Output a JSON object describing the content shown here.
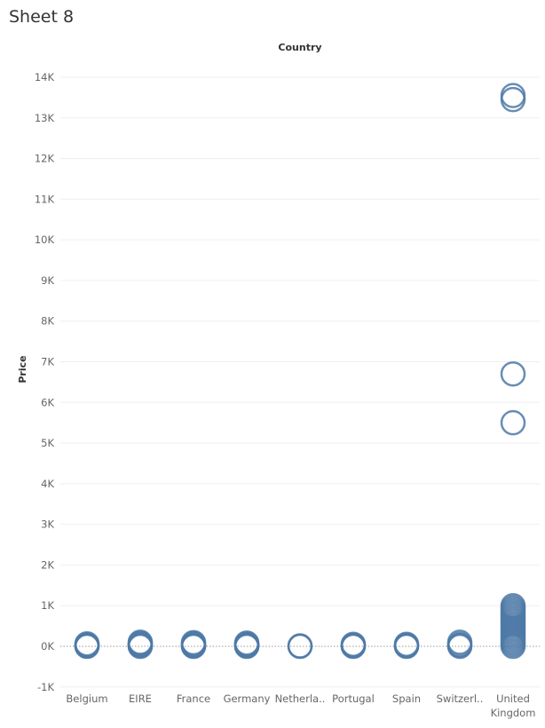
{
  "sheet": {
    "title": "Sheet 8"
  },
  "chart_data": {
    "type": "scatter",
    "title": "",
    "column_header": "Country",
    "ylabel": "Price",
    "ylim": [
      -1000,
      14500
    ],
    "yticks": [
      -1000,
      0,
      1000,
      2000,
      3000,
      4000,
      5000,
      6000,
      7000,
      8000,
      9000,
      10000,
      11000,
      12000,
      13000,
      14000
    ],
    "ytick_labels": [
      "-1K",
      "0K",
      "1K",
      "2K",
      "3K",
      "4K",
      "5K",
      "6K",
      "7K",
      "8K",
      "9K",
      "10K",
      "11K",
      "12K",
      "13K",
      "14K"
    ],
    "categories": [
      "Belgium",
      "EIRE",
      "France",
      "Germany",
      "Netherla..",
      "Portugal",
      "Spain",
      "Switzerl..",
      "United Kingdom"
    ],
    "category_label_lines": [
      [
        "Belgium"
      ],
      [
        "EIRE"
      ],
      [
        "France"
      ],
      [
        "Germany"
      ],
      [
        "Netherla.."
      ],
      [
        "Portugal"
      ],
      [
        "Spain"
      ],
      [
        "Switzerl.."
      ],
      [
        "United",
        "Kingdom"
      ]
    ],
    "mark_color": "#4e79a7",
    "zero_line_style": "dotted",
    "grid": true,
    "points": [
      {
        "category": "Belgium",
        "values": [
          0,
          10,
          20,
          40,
          60
        ]
      },
      {
        "category": "EIRE",
        "values": [
          0,
          15,
          30,
          50,
          80,
          100
        ]
      },
      {
        "category": "France",
        "values": [
          0,
          10,
          20,
          40,
          70,
          90
        ]
      },
      {
        "category": "Germany",
        "values": [
          0,
          10,
          20,
          40,
          60,
          80
        ]
      },
      {
        "category": "Netherla..",
        "values": [
          0,
          10
        ]
      },
      {
        "category": "Portugal",
        "values": [
          0,
          10,
          30,
          50
        ]
      },
      {
        "category": "Spain",
        "values": [
          0,
          10,
          30,
          50
        ]
      },
      {
        "category": "Switzerl..",
        "values": [
          0,
          20,
          50,
          100
        ]
      },
      {
        "category": "United Kingdom",
        "values": [
          0,
          50,
          100,
          150,
          200,
          250,
          300,
          350,
          400,
          450,
          500,
          550,
          600,
          650,
          700,
          750,
          800,
          850,
          900,
          950,
          1000,
          5500,
          6700,
          13450,
          13550
        ]
      }
    ]
  }
}
